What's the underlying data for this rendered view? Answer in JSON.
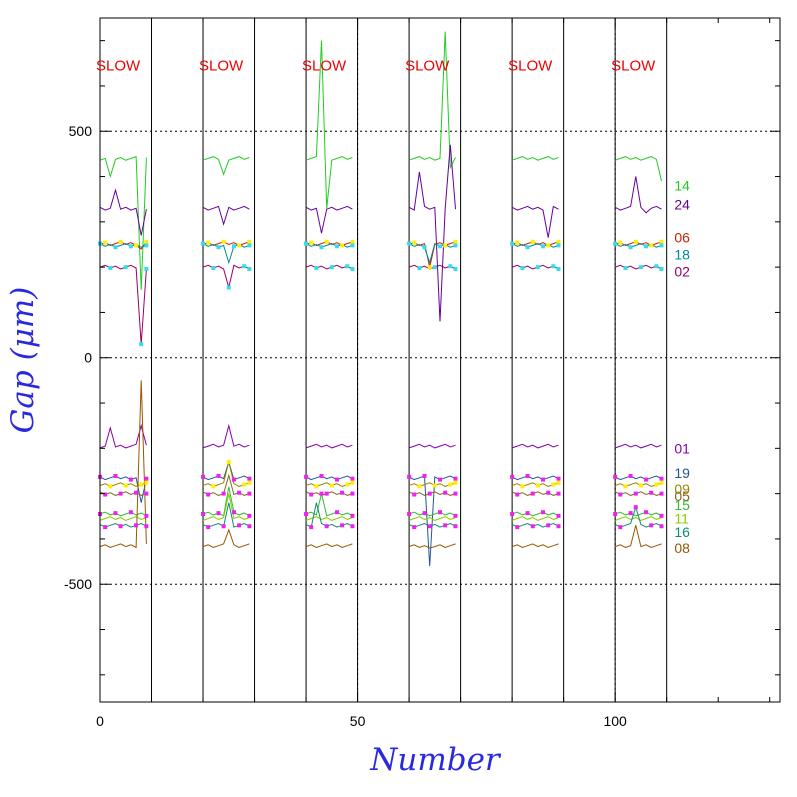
{
  "chart_data": {
    "type": "line",
    "xlabel": "Number",
    "ylabel": "Gap (μm)",
    "xlim": [
      0,
      132
    ],
    "ylim": [
      -760,
      750
    ],
    "xticks": [
      0,
      50,
      100
    ],
    "yticks": [
      -500,
      0,
      500
    ],
    "grid": "dotted at labeled ticks",
    "groups": [
      {
        "start": 0,
        "end": 10,
        "label": "SLOW"
      },
      {
        "start": 20,
        "end": 30,
        "label": "SLOW"
      },
      {
        "start": 40,
        "end": 50,
        "label": "SLOW"
      },
      {
        "start": 60,
        "end": 70,
        "label": "SLOW"
      },
      {
        "start": 80,
        "end": 90,
        "label": "SLOW"
      },
      {
        "start": 100,
        "end": 110,
        "label": "SLOW"
      }
    ],
    "series": [
      {
        "name": "14",
        "color": "#22cc22",
        "label_y": 380,
        "base": 440,
        "bumps": [
          [
            2,
            400
          ],
          [
            8,
            150
          ],
          [
            24,
            405
          ],
          [
            43,
            700
          ],
          [
            44,
            330
          ],
          [
            67,
            720
          ],
          [
            68,
            420
          ],
          [
            109,
            390
          ]
        ]
      },
      {
        "name": "24",
        "color": "#660099",
        "label_y": 338,
        "base": 330,
        "bumps": [
          [
            3,
            370
          ],
          [
            8,
            270
          ],
          [
            24,
            295
          ],
          [
            43,
            275
          ],
          [
            62,
            410
          ],
          [
            66,
            80
          ],
          [
            68,
            470
          ],
          [
            87,
            265
          ],
          [
            104,
            400
          ],
          [
            106,
            320
          ]
        ]
      },
      {
        "name": "06",
        "color": "#cc2200",
        "label_y": 265,
        "base": 252,
        "markers": "yellow",
        "bumps": [
          [
            8,
            240
          ],
          [
            64,
            200
          ]
        ]
      },
      {
        "name": "18",
        "color": "#008899",
        "label_y": 228,
        "base": 248,
        "markers": "cyan",
        "bumps": [
          [
            25,
            210
          ],
          [
            64,
            210
          ]
        ]
      },
      {
        "name": "02",
        "color": "#990066",
        "label_y": 190,
        "base": 200,
        "markers": "cyan",
        "bumps": [
          [
            8,
            30
          ],
          [
            25,
            155
          ]
        ]
      },
      {
        "name": "01",
        "color": "#8800aa",
        "label_y": -200,
        "base": -195,
        "bumps": [
          [
            2,
            -155
          ],
          [
            8,
            -150
          ],
          [
            25,
            -150
          ]
        ]
      },
      {
        "name": "19",
        "color": "#225599",
        "label_y": -255,
        "base": -265,
        "markers": "magenta",
        "bumps": [
          [
            8,
            -320
          ],
          [
            25,
            -230
          ],
          [
            64,
            -460
          ]
        ]
      },
      {
        "name": "09",
        "color": "#998800",
        "label_y": -290,
        "base": -280,
        "markers": "yellow",
        "bumps": [
          [
            25,
            -230
          ]
        ]
      },
      {
        "name": "05",
        "color": "#886622",
        "label_y": -305,
        "base": -300,
        "markers": "magenta",
        "bumps": [
          [
            25,
            -260
          ]
        ]
      },
      {
        "name": "15",
        "color": "#33bb33",
        "label_y": -325,
        "base": -345,
        "markers": "magenta",
        "bumps": [
          [
            25,
            -285
          ],
          [
            43,
            -300
          ]
        ]
      },
      {
        "name": "11",
        "color": "#88cc00",
        "label_y": -355,
        "base": -355,
        "bumps": [
          [
            25,
            -300
          ]
        ]
      },
      {
        "name": "16",
        "color": "#118877",
        "label_y": -385,
        "base": -370,
        "markers": "magenta",
        "bumps": [
          [
            25,
            -320
          ],
          [
            42,
            -320
          ],
          [
            104,
            -330
          ]
        ]
      },
      {
        "name": "08",
        "color": "#995500",
        "label_y": -420,
        "base": -415,
        "bumps": [
          [
            8,
            -50
          ],
          [
            25,
            -380
          ],
          [
            64,
            -420
          ],
          [
            104,
            -370
          ]
        ]
      }
    ]
  }
}
